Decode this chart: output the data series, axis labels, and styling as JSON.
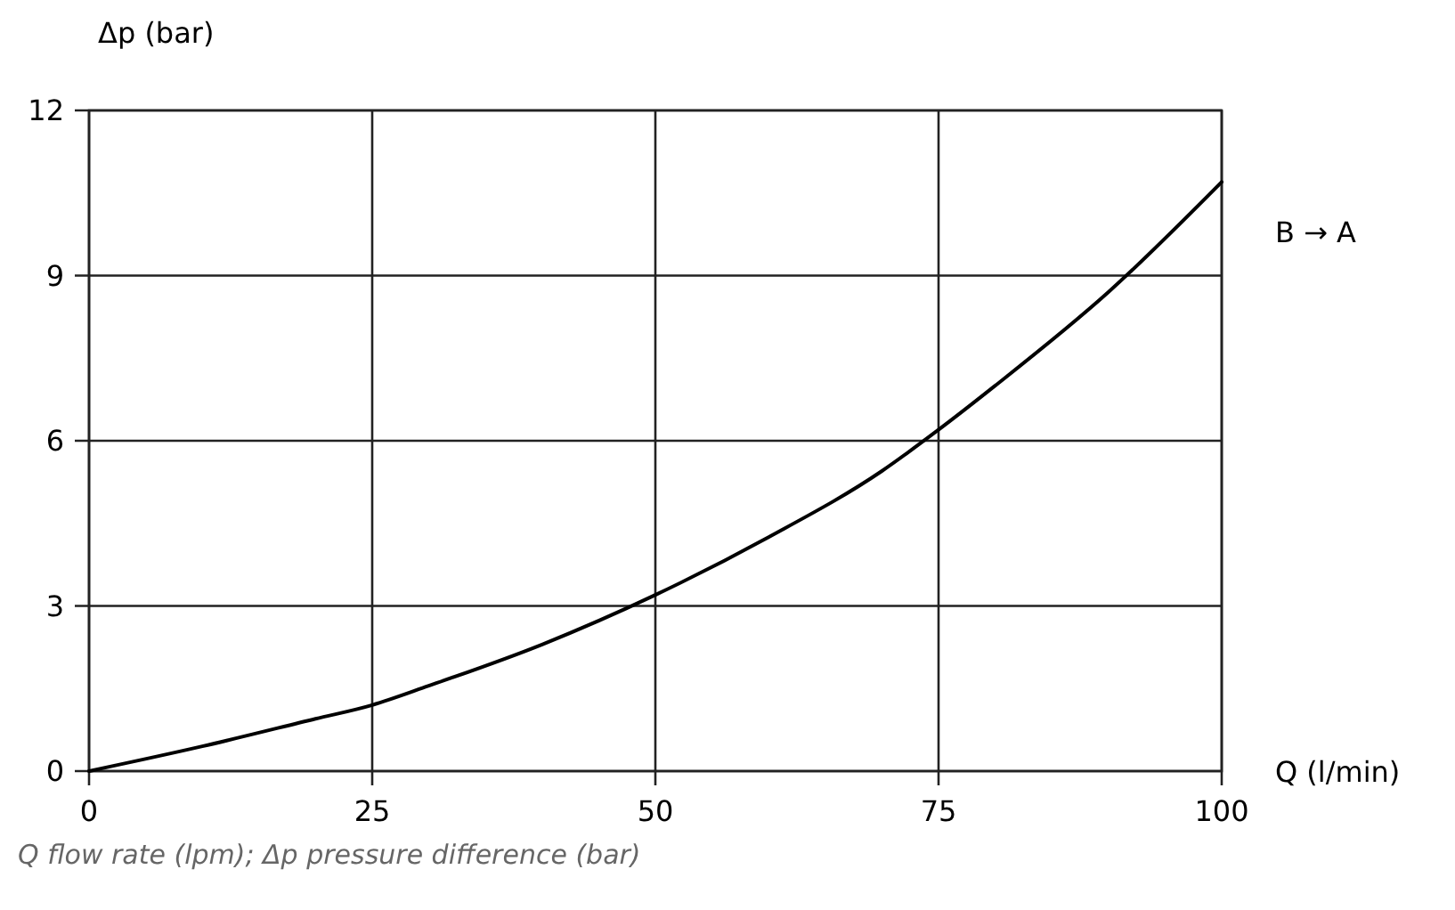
{
  "chart_data": {
    "type": "line",
    "xlabel": "Q (l/min)",
    "ylabel": "Δp (bar)",
    "x": [
      0,
      10,
      20,
      25,
      30,
      40,
      50,
      60,
      70,
      75,
      80,
      90,
      100
    ],
    "series": [
      {
        "color": "#000000",
        "values": [
          0,
          0.45,
          0.95,
          1.2,
          1.55,
          2.3,
          3.2,
          4.25,
          5.45,
          6.2,
          7.0,
          8.7,
          10.7
        ]
      }
    ],
    "xlim": [
      0,
      100
    ],
    "xticks": [
      0,
      25,
      50,
      75,
      100
    ],
    "ylim": [
      0,
      12
    ],
    "yticks": [
      0,
      3,
      6,
      9,
      12
    ],
    "grid": true,
    "marker": "none",
    "line_style": "solid",
    "annotations": [
      "B → A",
      "Q flow rate (lpm); Δp pressure difference (bar)"
    ]
  }
}
